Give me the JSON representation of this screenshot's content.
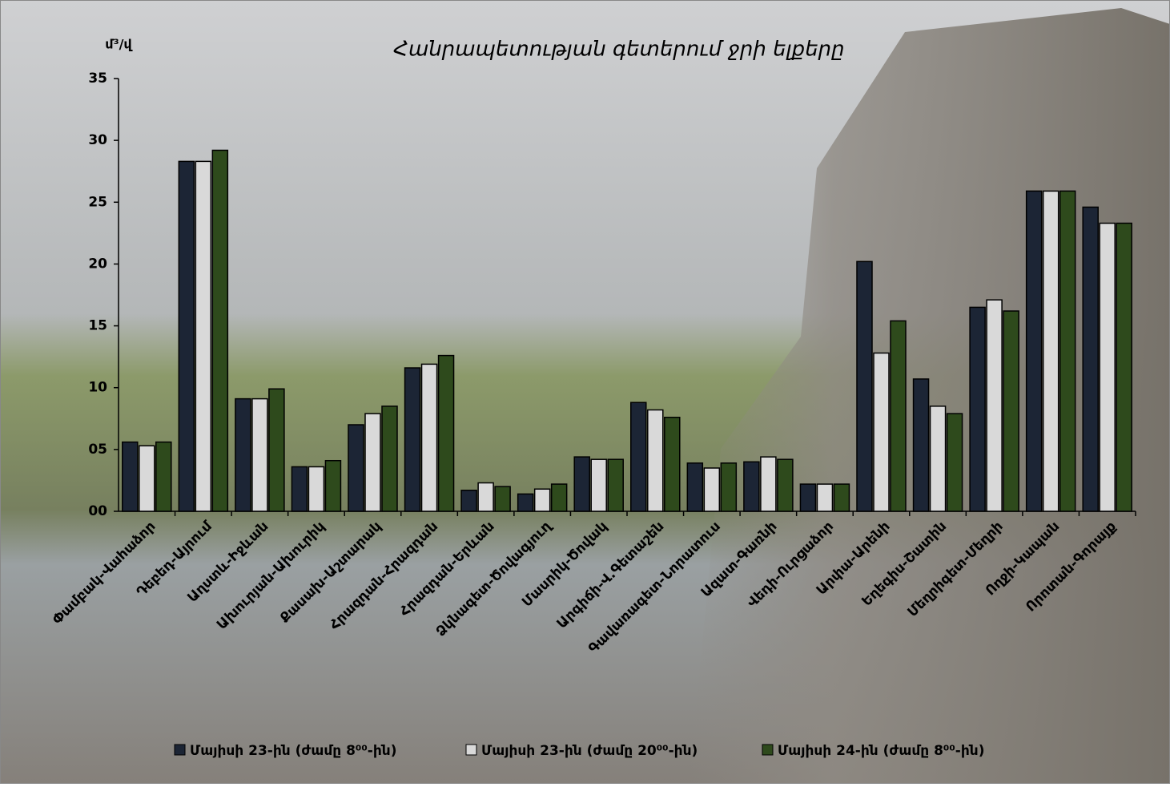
{
  "chart_data": {
    "type": "bar",
    "title": "Հանրապետության գետերում ջրի ելքերը",
    "y_label": "մ³/վ",
    "categories": [
      "Փամբակ-Վահաձոր",
      "Դեբեդ-Այրում",
      "Աղստև-Իջևան",
      "Ախուրյան-Ախուրիկ",
      "Քասախ-Աշտարակ",
      "Հրազդան-Հրազդան",
      "Հրազդան-Երևան",
      "Ձկնագետ-Ծովագյուղ",
      "Մասրիկ-Ծովակ",
      "Արգիճի-Վ.Գետաշեն",
      "Գավառագետ-Նորատուս",
      "Ազատ-Գառնի",
      "Վեդի-Ուրցաձոր",
      "Արփա-Արենի",
      "Եղեգիս-Շատին",
      "Մեղրիգետ-Մեղրի",
      "Ողջի-Կապան",
      "Որոտան-Գորայք"
    ],
    "series": [
      {
        "name": "Մայիսի 23-ին (ժամը 8⁰⁰-ին)",
        "color": "#1c2535",
        "values": [
          5.6,
          28.3,
          9.1,
          3.6,
          7.0,
          11.6,
          1.7,
          1.4,
          4.4,
          8.8,
          3.9,
          4.0,
          2.2,
          20.2,
          10.7,
          16.5,
          25.9,
          24.6
        ]
      },
      {
        "name": "Մայիսի 23-ին (ժամը 20⁰⁰-ին)",
        "color": "#d9d9d9",
        "values": [
          5.3,
          28.3,
          9.1,
          3.6,
          7.9,
          11.9,
          2.3,
          1.8,
          4.2,
          8.2,
          3.5,
          4.4,
          2.2,
          12.8,
          8.5,
          17.1,
          25.9,
          23.3
        ]
      },
      {
        "name": "Մայիսի 24-ին (ժամը 8⁰⁰-ին)",
        "color": "#2e4a1c",
        "values": [
          5.6,
          29.2,
          9.9,
          4.1,
          8.5,
          12.6,
          2.0,
          2.2,
          4.2,
          7.6,
          3.9,
          4.2,
          2.2,
          15.4,
          7.9,
          16.2,
          25.9,
          23.3
        ]
      }
    ],
    "ylim": [
      0,
      35
    ],
    "yticks": [
      {
        "value": 0,
        "label": "00"
      },
      {
        "value": 5,
        "label": "05"
      },
      10,
      15,
      20,
      25,
      30,
      35
    ],
    "legend": "bottom"
  }
}
